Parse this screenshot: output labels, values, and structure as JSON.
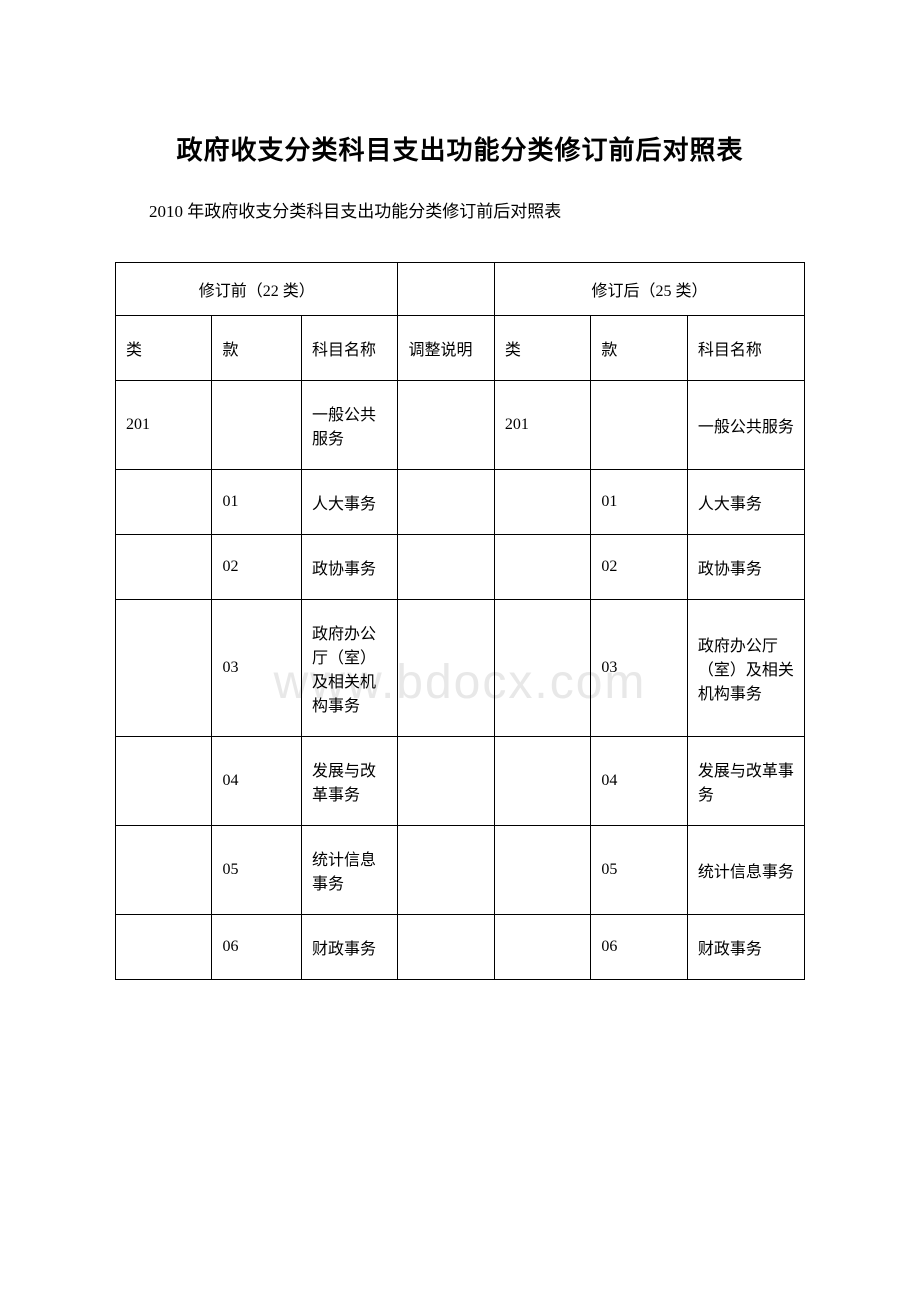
{
  "title": "政府收支分类科目支出功能分类修订前后对照表",
  "subtitle": "2010 年政府收支分类科目支出功能分类修订前后对照表",
  "watermark": "www.bdocx.com",
  "headers": {
    "before_group": "修订前（22 类）",
    "after_group": "修订后（25 类）",
    "col_class": "类",
    "col_section": "款",
    "col_name": "科目名称",
    "col_note": "调整说明"
  },
  "rows": [
    {
      "b_class": "201",
      "b_section": "",
      "b_name": "一般公共服务",
      "note": "",
      "a_class": "201",
      "a_section": "",
      "a_name": "一般公共服务"
    },
    {
      "b_class": "",
      "b_section": "01",
      "b_name": "人大事务",
      "note": "",
      "a_class": "",
      "a_section": "01",
      "a_name": "人大事务"
    },
    {
      "b_class": "",
      "b_section": "02",
      "b_name": "政协事务",
      "note": "",
      "a_class": "",
      "a_section": "02",
      "a_name": "政协事务"
    },
    {
      "b_class": "",
      "b_section": "03",
      "b_name": "政府办公厅（室）及相关机构事务",
      "note": "",
      "a_class": "",
      "a_section": "03",
      "a_name": "政府办公厅（室）及相关机构事务"
    },
    {
      "b_class": "",
      "b_section": "04",
      "b_name": "发展与改革事务",
      "note": "",
      "a_class": "",
      "a_section": "04",
      "a_name": "发展与改革事务"
    },
    {
      "b_class": "",
      "b_section": "05",
      "b_name": "统计信息事务",
      "note": "",
      "a_class": "",
      "a_section": "05",
      "a_name": "统计信息事务"
    },
    {
      "b_class": "",
      "b_section": "06",
      "b_name": "财政事务",
      "note": "",
      "a_class": "",
      "a_section": "06",
      "a_name": "财政事务"
    }
  ]
}
